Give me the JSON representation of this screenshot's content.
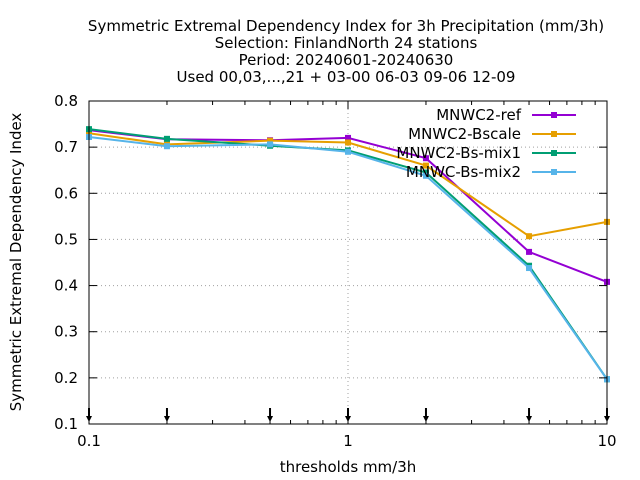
{
  "chart_data": {
    "type": "line",
    "title_lines": [
      "Symmetric Extremal Dependency Index  for 3h Precipitation (mm/3h)",
      "Selection: FinlandNorth     24 stations",
      "Period: 20240601-20240630",
      "Used 00,03,...,21 + 03-00 06-03 09-06 12-09"
    ],
    "xlabel": "thresholds mm/3h",
    "ylabel": "Symmetric Extremal Dependency Index",
    "x_scale": "log",
    "xlim": [
      0.1,
      10
    ],
    "ylim": [
      0.1,
      0.8
    ],
    "x_ticks": [
      0.1,
      1,
      10
    ],
    "x_tick_labels": [
      "0.1",
      "1",
      "10"
    ],
    "y_ticks": [
      0.1,
      0.2,
      0.3,
      0.4,
      0.5,
      0.6,
      0.7,
      0.8
    ],
    "y_tick_labels": [
      "0.1",
      "0.2",
      "0.3",
      "0.4",
      "0.5",
      "0.6",
      "0.7",
      "0.8"
    ],
    "grid": true,
    "legend_position": "top-right",
    "threshold_markers": [
      0.1,
      0.2,
      0.5,
      1,
      2,
      5,
      10
    ],
    "x": [
      0.1,
      0.2,
      0.5,
      1,
      2,
      5,
      10
    ],
    "series": [
      {
        "name": "MNWC2-ref",
        "color": "#9400d3",
        "values": [
          0.737,
          0.717,
          0.715,
          0.72,
          0.676,
          0.473,
          0.408
        ]
      },
      {
        "name": "MNWC2-Bscale",
        "color": "#e69f00",
        "values": [
          0.73,
          0.706,
          0.714,
          0.71,
          0.66,
          0.507,
          0.538
        ]
      },
      {
        "name": "MNWC2-Bs-mix1",
        "color": "#009e73",
        "values": [
          0.739,
          0.718,
          0.703,
          0.693,
          0.645,
          0.443,
          0.197
        ]
      },
      {
        "name": "MNWC-Bs-mix2",
        "color": "#56b4e9",
        "values": [
          0.722,
          0.702,
          0.706,
          0.69,
          0.638,
          0.438,
          0.197
        ]
      }
    ]
  }
}
